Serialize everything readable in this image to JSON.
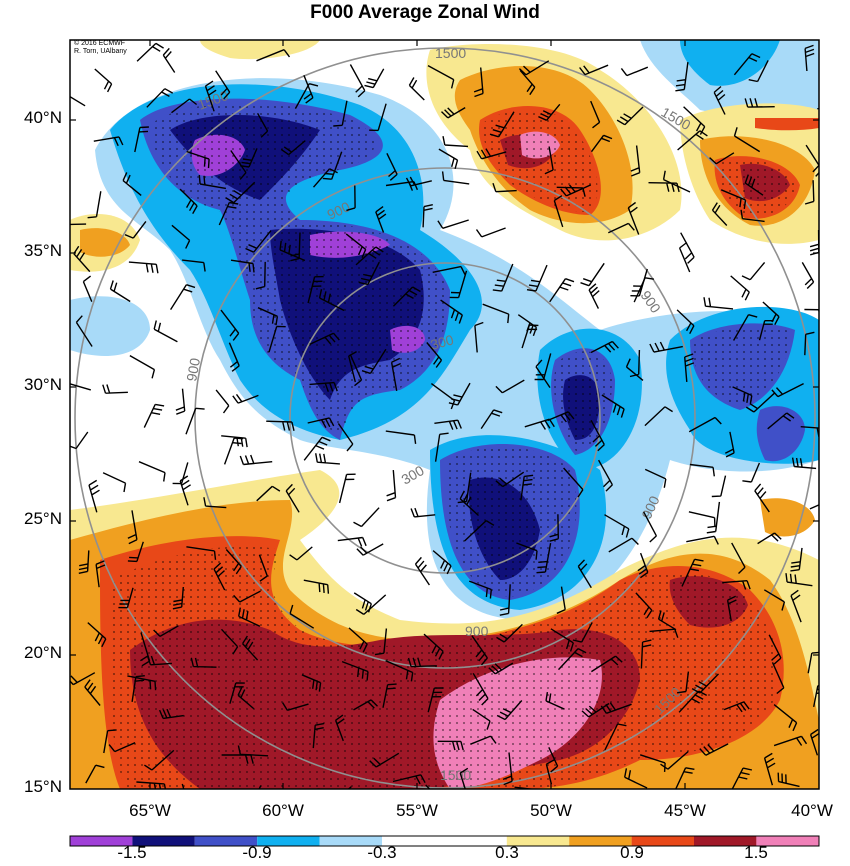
{
  "title": "F000 Average Zonal Wind",
  "credit": {
    "line1": "© 2016 ECMWF",
    "line2": "R. Torn, UAlbany"
  },
  "latitude_labels": [
    "40°N",
    "35°N",
    "30°N",
    "25°N",
    "20°N",
    "15°N"
  ],
  "longitude_labels": [
    "65°W",
    "60°W",
    "55°W",
    "50°W",
    "45°W",
    "40°W"
  ],
  "colorbar": {
    "colors": [
      "#a040d8",
      "#10107a",
      "#4050c8",
      "#10b0f0",
      "#a8daf8",
      "#ffffff",
      "#ffffff",
      "#f8e890",
      "#f0a020",
      "#e84818",
      "#a01828",
      "#f080b8"
    ],
    "labels": [
      "-1.5",
      "-0.9",
      "-0.3",
      "0.3",
      "0.9",
      "1.5"
    ]
  },
  "contour_labels": [
    "1500",
    "1500",
    "1500",
    "900",
    "900",
    "900",
    "900",
    "900",
    "300",
    "300",
    "1500",
    "1500"
  ],
  "chart_data": {
    "type": "map",
    "title": "F000 Average Zonal Wind",
    "projection": "lat-lon",
    "lon_range": [
      -68,
      -40
    ],
    "lat_range": [
      15,
      42.5
    ],
    "shading_variable": "average zonal wind anomaly",
    "shading_levels": [
      -1.5,
      -1.2,
      -0.9,
      -0.6,
      -0.3,
      0,
      0.3,
      0.6,
      0.9,
      1.2,
      1.5
    ],
    "contour_values": [
      300,
      900,
      1500
    ],
    "overlays": [
      "wind barbs",
      "stippling on significant regions"
    ]
  }
}
